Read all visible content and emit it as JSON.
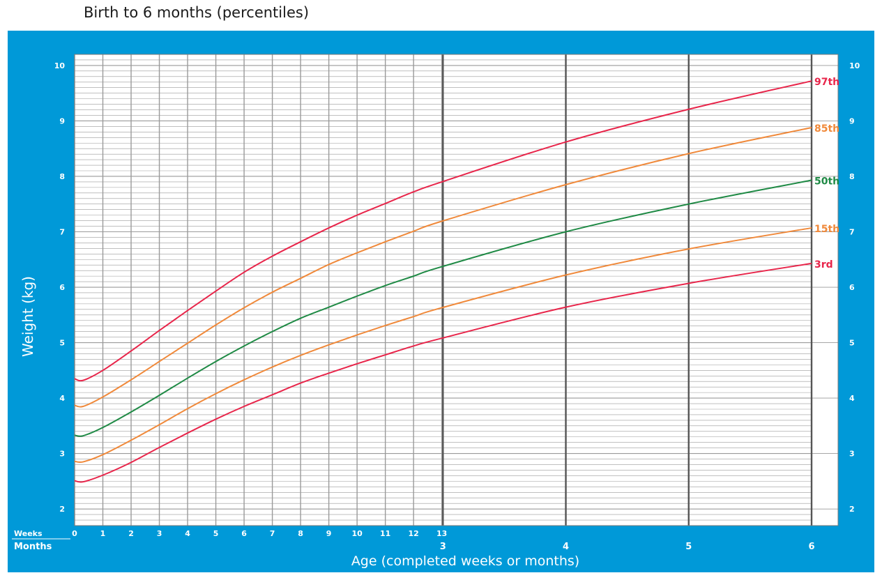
{
  "page": {
    "title": "Birth to 6 months (percentiles)"
  },
  "colors": {
    "panel": "#0099d8",
    "grid": "#9a9a9a",
    "major_grid": "#555555",
    "p3": "#e8254a",
    "p15": "#f0893a",
    "p50": "#1f8a45",
    "p85": "#f0893a",
    "p97": "#e8254a"
  },
  "chart_data": {
    "type": "line",
    "title": "Birth to 6 months (percentiles)",
    "ylabel": "Weight (kg)",
    "xlabel": "Age (completed weeks or months)",
    "x_unit": "weeks",
    "xlim": [
      0,
      26.09
    ],
    "ylim": [
      1.7,
      10.2
    ],
    "grid": true,
    "y_ticks": [
      "2",
      "3",
      "4",
      "5",
      "6",
      "7",
      "8",
      "9",
      "10"
    ],
    "y_tick_values": [
      2,
      3,
      4,
      5,
      6,
      7,
      8,
      9,
      10
    ],
    "weeks_axis_label": "Weeks",
    "months_axis_label": "Months",
    "week_ticks": [
      "0",
      "1",
      "2",
      "3",
      "4",
      "5",
      "6",
      "7",
      "8",
      "9",
      "10",
      "11",
      "12",
      "13"
    ],
    "week_tick_values": [
      0,
      1,
      2,
      3,
      4,
      5,
      6,
      7,
      8,
      9,
      10,
      11,
      12,
      13
    ],
    "month_ticks": [
      "3",
      "4",
      "5",
      "6"
    ],
    "month_tick_values": [
      13.04,
      17.39,
      21.74,
      26.09
    ],
    "x": [
      0,
      0.3,
      1,
      2,
      3,
      4,
      5,
      6,
      7,
      8,
      9,
      10,
      11,
      12,
      13,
      17.39,
      21.74,
      26.09
    ],
    "series": [
      {
        "name": "97th",
        "color_key": "p97",
        "values": [
          4.35,
          4.32,
          4.5,
          4.85,
          5.22,
          5.58,
          5.93,
          6.27,
          6.56,
          6.82,
          7.07,
          7.3,
          7.51,
          7.72,
          7.9,
          8.62,
          9.21,
          9.72
        ]
      },
      {
        "name": "85th",
        "color_key": "p85",
        "values": [
          3.87,
          3.85,
          4.02,
          4.33,
          4.66,
          4.99,
          5.32,
          5.63,
          5.91,
          6.16,
          6.41,
          6.62,
          6.82,
          7.01,
          7.19,
          7.85,
          8.41,
          8.88
        ]
      },
      {
        "name": "50th",
        "color_key": "p50",
        "values": [
          3.33,
          3.32,
          3.47,
          3.75,
          4.05,
          4.36,
          4.66,
          4.94,
          5.2,
          5.44,
          5.64,
          5.84,
          6.03,
          6.2,
          6.37,
          7.0,
          7.5,
          7.93
        ]
      },
      {
        "name": "15th",
        "color_key": "p15",
        "values": [
          2.86,
          2.85,
          2.98,
          3.24,
          3.52,
          3.81,
          4.08,
          4.33,
          4.56,
          4.77,
          4.96,
          5.14,
          5.31,
          5.47,
          5.63,
          6.22,
          6.69,
          7.07
        ]
      },
      {
        "name": "3rd",
        "color_key": "p3",
        "values": [
          2.51,
          2.49,
          2.61,
          2.84,
          3.11,
          3.37,
          3.62,
          3.85,
          4.06,
          4.27,
          4.45,
          4.62,
          4.78,
          4.94,
          5.08,
          5.64,
          6.07,
          6.43
        ]
      }
    ]
  }
}
